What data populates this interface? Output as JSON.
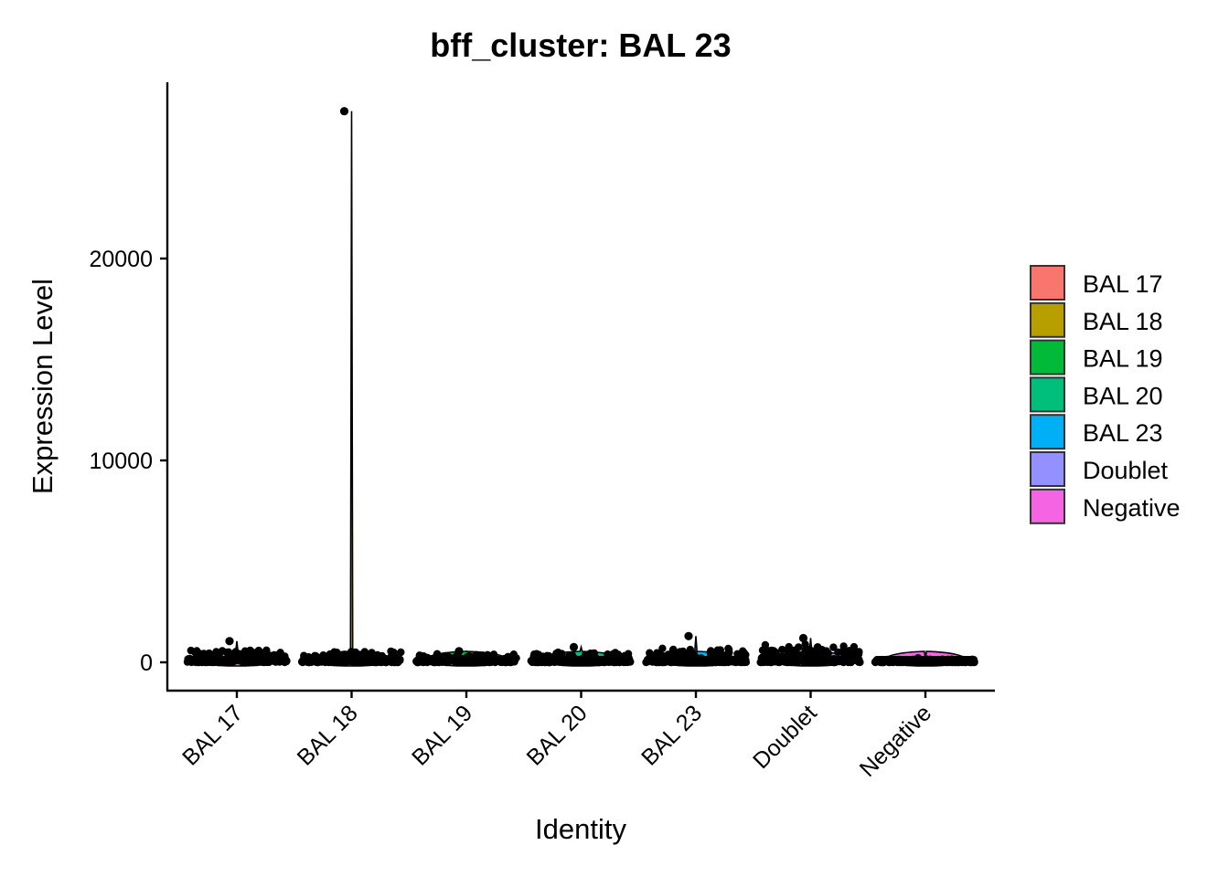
{
  "chart_data": {
    "type": "violin",
    "title": "bff_cluster: BAL 23",
    "xlabel": "Identity",
    "ylabel": "Expression Level",
    "ylim": [
      -1300,
      28500
    ],
    "yticks": [
      0,
      10000,
      20000
    ],
    "grid": false,
    "legend_position": "right",
    "categories": [
      "BAL 17",
      "BAL 18",
      "BAL 19",
      "BAL 20",
      "BAL 23",
      "Doublet",
      "Negative"
    ],
    "series": [
      {
        "category": "BAL 17",
        "color": "#F8766D",
        "max": 1050,
        "typical_max": 600
      },
      {
        "category": "BAL 18",
        "color": "#B79F00",
        "max": 27300,
        "typical_max": 550
      },
      {
        "category": "BAL 19",
        "color": "#00BA38",
        "max": 550,
        "typical_max": 450
      },
      {
        "category": "BAL 20",
        "color": "#00BF7D",
        "max": 750,
        "typical_max": 500
      },
      {
        "category": "BAL 23",
        "color": "#00B0F6",
        "max": 1300,
        "typical_max": 700
      },
      {
        "category": "Doublet",
        "color": "#9590FF",
        "max": 1200,
        "typical_max": 900
      },
      {
        "category": "Negative",
        "color": "#F564E3",
        "max": 200,
        "typical_max": 150
      }
    ]
  }
}
